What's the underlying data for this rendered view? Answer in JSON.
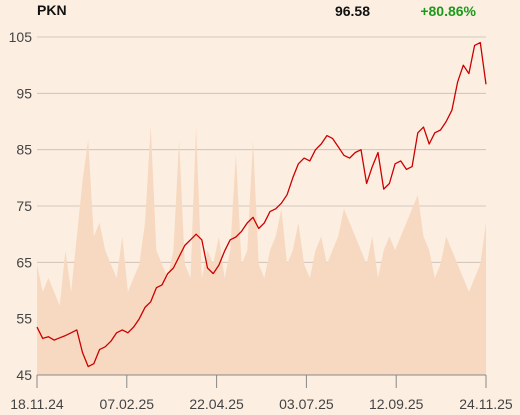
{
  "header": {
    "ticker": "PKN",
    "last_price": "96.58",
    "change_pct": "+80.86%"
  },
  "colors": {
    "background": "#fcefe2",
    "price_line": "#cc0000",
    "volume_fill": "#f7d9c1",
    "grid": "#c9bbb0",
    "change_positive": "#1a9a1a"
  },
  "chart_data": {
    "type": "line",
    "title": "",
    "xlabel": "",
    "ylabel": "",
    "ylim": [
      45,
      105
    ],
    "yticks": [
      105,
      95,
      85,
      75,
      65,
      55,
      45
    ],
    "xticks": [
      "18.11.24",
      "07.02.25",
      "22.04.25",
      "03.07.25",
      "12.09.25",
      "24.11.25"
    ],
    "grid": "horizontal",
    "series": [
      {
        "kind": "price",
        "x_start": "18.11.24",
        "x_end": "24.11.25",
        "values": [
          53.5,
          51.5,
          51.8,
          51.2,
          51.6,
          52.0,
          52.5,
          53.0,
          49.0,
          46.5,
          47.0,
          49.5,
          50.0,
          51.0,
          52.5,
          53.0,
          52.5,
          53.5,
          55.0,
          57.0,
          58.0,
          60.5,
          61.0,
          63.0,
          64.0,
          66.0,
          68.0,
          69.0,
          70.0,
          69.0,
          64.0,
          63.0,
          64.5,
          67.0,
          69.0,
          69.5,
          70.5,
          72.0,
          73.0,
          71.0,
          72.0,
          74.0,
          74.5,
          75.5,
          77.0,
          80.0,
          82.5,
          83.5,
          83.0,
          85.0,
          86.0,
          87.5,
          87.0,
          85.5,
          84.0,
          83.5,
          84.5,
          85.0,
          79.0,
          82.0,
          84.5,
          78.0,
          79.0,
          82.5,
          83.0,
          81.5,
          82.0,
          88.0,
          89.0,
          86.0,
          88.0,
          88.5,
          90.0,
          92.0,
          97.0,
          100.0,
          98.5,
          103.5,
          104.0,
          96.6
        ]
      }
    ],
    "volume_relative": [
      0.4,
      0.3,
      0.35,
      0.3,
      0.25,
      0.45,
      0.3,
      0.5,
      0.7,
      0.85,
      0.5,
      0.55,
      0.45,
      0.4,
      0.35,
      0.5,
      0.3,
      0.35,
      0.4,
      0.55,
      0.9,
      0.45,
      0.4,
      0.35,
      0.45,
      0.85,
      0.4,
      0.35,
      0.9,
      0.35,
      0.45,
      0.4,
      0.5,
      0.35,
      0.45,
      0.8,
      0.4,
      0.45,
      0.85,
      0.4,
      0.35,
      0.45,
      0.5,
      0.6,
      0.4,
      0.45,
      0.55,
      0.4,
      0.35,
      0.45,
      0.5,
      0.4,
      0.45,
      0.5,
      0.6,
      0.55,
      0.5,
      0.45,
      0.4,
      0.5,
      0.35,
      0.45,
      0.5,
      0.45,
      0.5,
      0.55,
      0.6,
      0.65,
      0.5,
      0.45,
      0.35,
      0.4,
      0.5,
      0.45,
      0.4,
      0.35,
      0.3,
      0.35,
      0.4,
      0.55
    ]
  }
}
